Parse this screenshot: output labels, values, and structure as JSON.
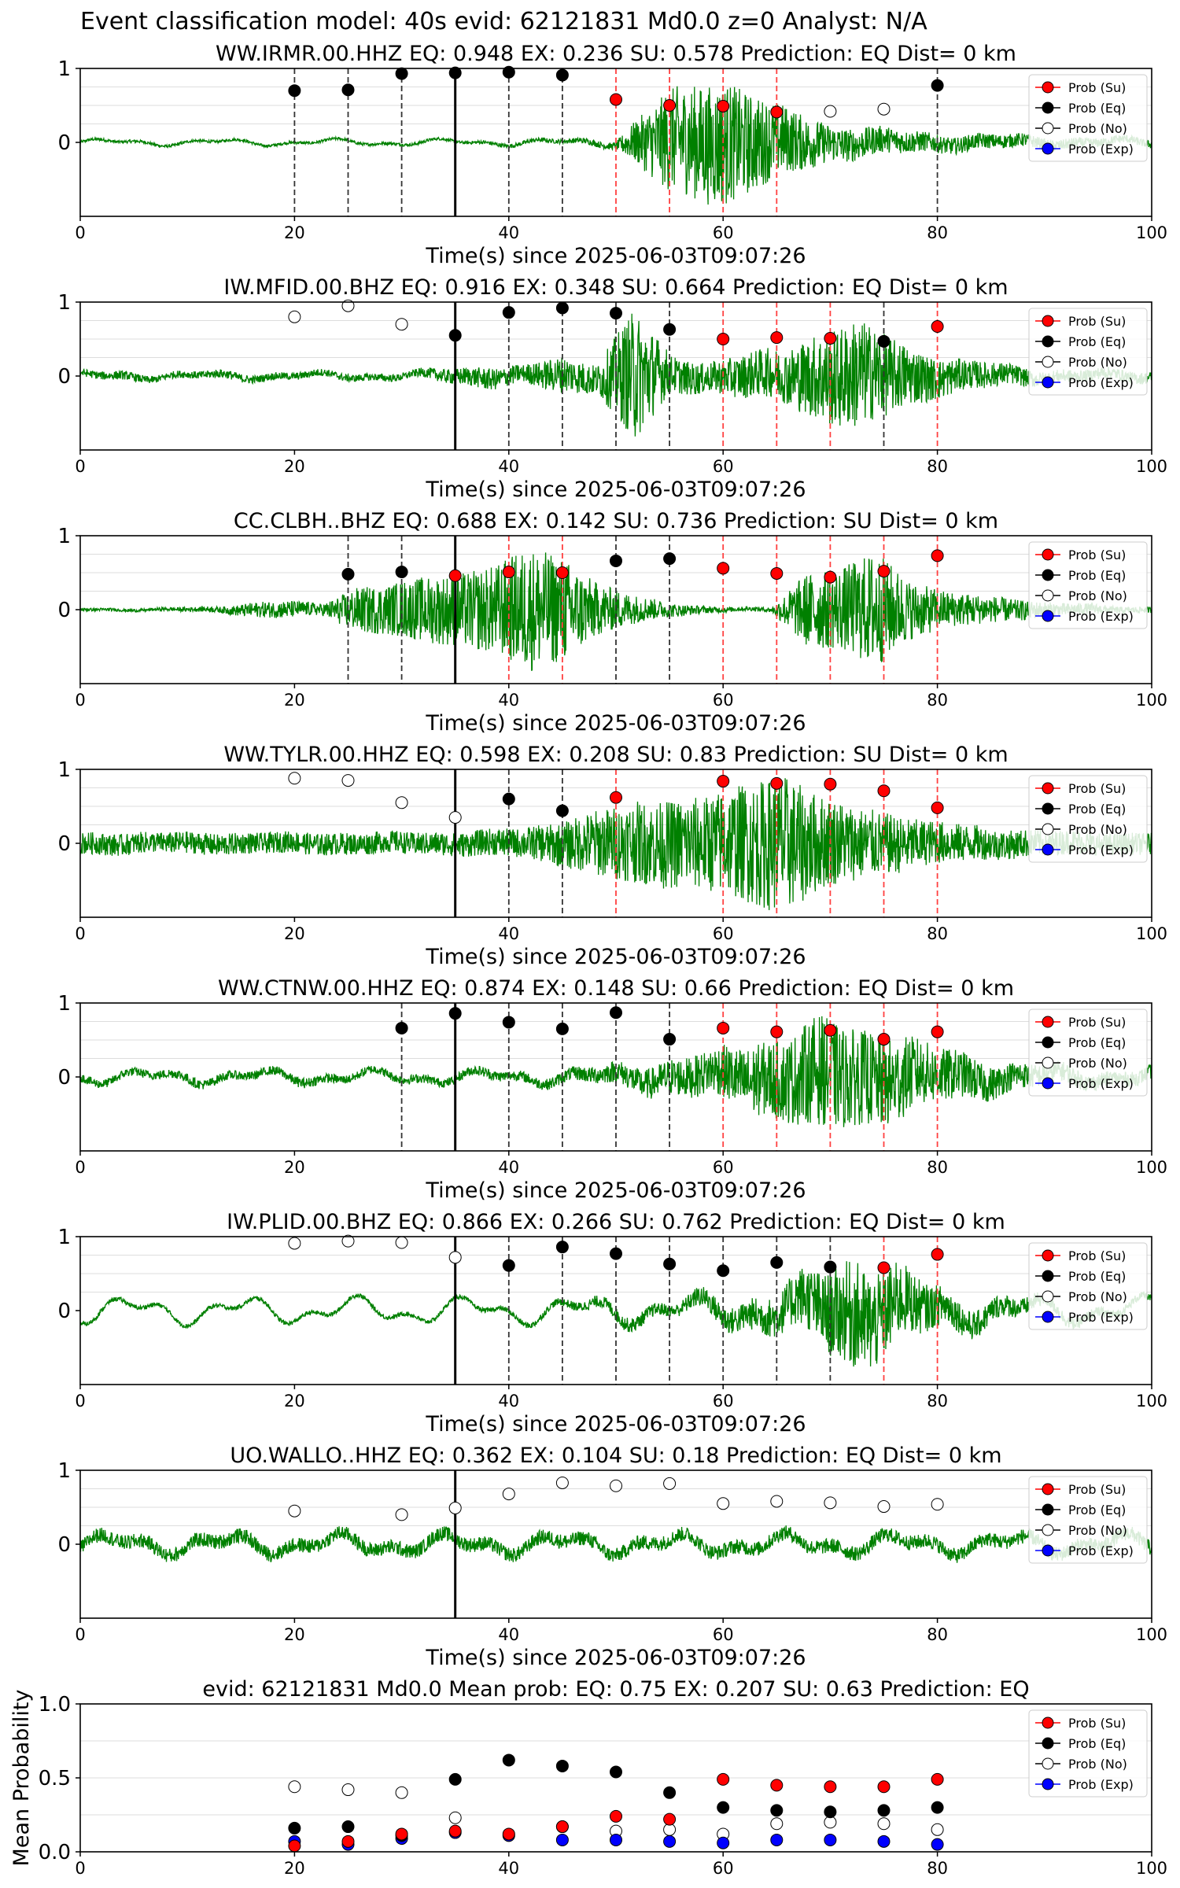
{
  "suptitle": "Event classification model: 40s evid: 62121831 Md0.0 z=0 Analyst: N/A",
  "colors": {
    "su": "#ff0000",
    "eq": "#000000",
    "no": "#ffffff",
    "exp": "#0000ff",
    "trace": "#008000",
    "grid": "#dddddd",
    "eq_line": "#333333",
    "su_line": "#ff4040",
    "pick_line": "#000000"
  },
  "legend_labels": [
    "Prob (Su)",
    "Prob (Eq)",
    "Prob (No)",
    "Prob (Exp)"
  ],
  "chart_data": [
    {
      "type": "scatter",
      "title": "WW.IRMR.00.HHZ   EQ: 0.948  EX: 0.236  SU: 0.578   Prediction: EQ    Dist= 0 km",
      "xlabel": "Time(s) since 2025-06-03T09:07:26",
      "xlim": [
        0,
        100
      ],
      "ylim": [
        -1,
        1
      ],
      "xticks": [
        "0",
        "20",
        "40",
        "60",
        "80",
        "100"
      ],
      "yticks": [
        "1",
        "0"
      ],
      "pick_time": 35,
      "amplitude": [
        0.02,
        0.02,
        0.02,
        0.02,
        0.02,
        0.02,
        0.02,
        0.02,
        0.03,
        0.03,
        0.05,
        0.7,
        0.85,
        0.5,
        0.25,
        0.18,
        0.12,
        0.1,
        0.08,
        0.06,
        0.05
      ],
      "trace_drift": 0.4,
      "vlines_eq": [
        20,
        25,
        30,
        40,
        45,
        80
      ],
      "vlines_su": [
        50,
        55,
        60,
        65
      ],
      "series": [
        {
          "name": "Prob (Eq)",
          "x": [
            20,
            25,
            30,
            35,
            40,
            45,
            80
          ],
          "y": [
            0.7,
            0.71,
            0.93,
            0.94,
            0.95,
            0.91,
            0.77
          ]
        },
        {
          "name": "Prob (Su)",
          "x": [
            50,
            55,
            60,
            65
          ],
          "y": [
            0.58,
            0.5,
            0.49,
            0.41
          ]
        },
        {
          "name": "Prob (No)",
          "x": [
            70,
            75
          ],
          "y": [
            0.42,
            0.45
          ]
        }
      ]
    },
    {
      "type": "scatter",
      "title": "IW.MFID.00.BHZ   EQ: 0.916  EX: 0.348  SU: 0.664   Prediction: EQ    Dist= 0 km",
      "xlabel": "Time(s) since 2025-06-03T09:07:26",
      "xlim": [
        0,
        100
      ],
      "ylim": [
        -1,
        1
      ],
      "xticks": [
        "0",
        "20",
        "40",
        "60",
        "80",
        "100"
      ],
      "yticks": [
        "1",
        "0"
      ],
      "pick_time": 35,
      "amplitude": [
        0.05,
        0.06,
        0.05,
        0.05,
        0.06,
        0.05,
        0.05,
        0.05,
        0.05,
        0.05,
        0.1,
        0.15,
        0.12,
        0.25,
        0.2,
        0.9,
        0.25,
        0.2,
        0.3,
        0.35,
        0.6,
        0.75,
        0.5,
        0.3,
        0.2,
        0.15,
        0.1,
        0.08,
        0.08,
        0.08
      ],
      "trace_drift": 0.4,
      "vlines_eq": [
        40,
        45,
        50,
        55,
        75
      ],
      "vlines_su": [
        60,
        65,
        70,
        80
      ],
      "series": [
        {
          "name": "Prob (No)",
          "x": [
            20,
            25,
            30
          ],
          "y": [
            0.8,
            0.95,
            0.7
          ]
        },
        {
          "name": "Prob (Eq)",
          "x": [
            35,
            40,
            45,
            50,
            55,
            75
          ],
          "y": [
            0.55,
            0.86,
            0.92,
            0.85,
            0.63,
            0.47
          ]
        },
        {
          "name": "Prob (Su)",
          "x": [
            60,
            65,
            70,
            80
          ],
          "y": [
            0.5,
            0.52,
            0.51,
            0.67
          ]
        }
      ]
    },
    {
      "type": "scatter",
      "title": "CC.CLBH..BHZ   EQ: 0.688  EX: 0.142  SU: 0.736   Prediction: SU    Dist= 0 km",
      "xlabel": "Time(s) since 2025-06-03T09:07:26",
      "xlim": [
        0,
        100
      ],
      "ylim": [
        -1,
        1
      ],
      "xticks": [
        "0",
        "20",
        "40",
        "60",
        "80",
        "100"
      ],
      "yticks": [
        "1",
        "0"
      ],
      "pick_time": 35,
      "amplitude": [
        0.02,
        0.02,
        0.02,
        0.03,
        0.04,
        0.1,
        0.12,
        0.08,
        0.3,
        0.35,
        0.45,
        0.5,
        0.6,
        0.85,
        0.7,
        0.35,
        0.2,
        0.1,
        0.05,
        0.03,
        0.03,
        0.5,
        0.55,
        0.8,
        0.4,
        0.25,
        0.2,
        0.15,
        0.1,
        0.08,
        0.05,
        0.04
      ],
      "trace_drift": 0.1,
      "vlines_eq": [
        25,
        30,
        50,
        55
      ],
      "vlines_su": [
        40,
        45,
        60,
        65,
        70,
        75,
        80
      ],
      "series": [
        {
          "name": "Prob (Eq)",
          "x": [
            25,
            30,
            50,
            55
          ],
          "y": [
            0.48,
            0.51,
            0.66,
            0.69
          ]
        },
        {
          "name": "Prob (Su)",
          "x": [
            35,
            40,
            45,
            60,
            65,
            70,
            75,
            80
          ],
          "y": [
            0.46,
            0.51,
            0.5,
            0.56,
            0.49,
            0.44,
            0.52,
            0.73
          ]
        }
      ]
    },
    {
      "type": "scatter",
      "title": "WW.TYLR.00.HHZ   EQ: 0.598  EX: 0.208  SU: 0.83   Prediction: SU    Dist= 0 km",
      "xlabel": "Time(s) since 2025-06-03T09:07:26",
      "xlim": [
        0,
        100
      ],
      "ylim": [
        -1,
        1
      ],
      "xticks": [
        "0",
        "20",
        "40",
        "60",
        "80",
        "100"
      ],
      "yticks": [
        "1",
        "0"
      ],
      "pick_time": 35,
      "amplitude": [
        0.15,
        0.15,
        0.14,
        0.15,
        0.15,
        0.14,
        0.15,
        0.15,
        0.15,
        0.15,
        0.16,
        0.18,
        0.2,
        0.3,
        0.45,
        0.55,
        0.6,
        0.65,
        0.8,
        0.95,
        0.65,
        0.5,
        0.4,
        0.3,
        0.25,
        0.2,
        0.18,
        0.16,
        0.15,
        0.15
      ],
      "trace_drift": 0.2,
      "vlines_eq": [
        40,
        45
      ],
      "vlines_su": [
        50,
        60,
        65,
        70,
        75,
        80
      ],
      "series": [
        {
          "name": "Prob (No)",
          "x": [
            20,
            25,
            30,
            35
          ],
          "y": [
            0.88,
            0.85,
            0.55,
            0.35
          ]
        },
        {
          "name": "Prob (Eq)",
          "x": [
            40,
            45
          ],
          "y": [
            0.6,
            0.44
          ]
        },
        {
          "name": "Prob (Su)",
          "x": [
            50,
            60,
            65,
            70,
            75,
            80
          ],
          "y": [
            0.62,
            0.84,
            0.81,
            0.8,
            0.71,
            0.48
          ]
        }
      ]
    },
    {
      "type": "scatter",
      "title": "WW.CTNW.00.HHZ   EQ: 0.874  EX: 0.148  SU: 0.66   Prediction: EQ    Dist= 0 km",
      "xlabel": "Time(s) since 2025-06-03T09:07:26",
      "xlim": [
        0,
        100
      ],
      "ylim": [
        -1,
        1
      ],
      "xticks": [
        "0",
        "20",
        "40",
        "60",
        "80",
        "100"
      ],
      "yticks": [
        "1",
        "0"
      ],
      "pick_time": 35,
      "amplitude": [
        0.06,
        0.06,
        0.06,
        0.07,
        0.06,
        0.06,
        0.07,
        0.06,
        0.06,
        0.06,
        0.06,
        0.07,
        0.07,
        0.08,
        0.12,
        0.18,
        0.25,
        0.3,
        0.45,
        0.55,
        0.75,
        0.65,
        0.6,
        0.4,
        0.3,
        0.2,
        0.15,
        0.12,
        0.1,
        0.1
      ],
      "trace_drift": 0.8,
      "vlines_eq": [
        30,
        40,
        45,
        50,
        55
      ],
      "vlines_su": [
        60,
        65,
        70,
        75,
        80
      ],
      "series": [
        {
          "name": "Prob (Eq)",
          "x": [
            30,
            35,
            40,
            45,
            50,
            55
          ],
          "y": [
            0.66,
            0.86,
            0.74,
            0.65,
            0.87,
            0.51
          ]
        },
        {
          "name": "Prob (Su)",
          "x": [
            60,
            65,
            70,
            75,
            80
          ],
          "y": [
            0.66,
            0.61,
            0.63,
            0.51,
            0.61
          ]
        }
      ]
    },
    {
      "type": "scatter",
      "title": "IW.PLID.00.BHZ   EQ: 0.866  EX: 0.266  SU: 0.762   Prediction: EQ    Dist= 0 km",
      "xlabel": "Time(s) since 2025-06-03T09:07:26",
      "xlim": [
        0,
        100
      ],
      "ylim": [
        -1,
        1
      ],
      "xticks": [
        "0",
        "20",
        "40",
        "60",
        "80",
        "100"
      ],
      "yticks": [
        "1",
        "0"
      ],
      "pick_time": 35,
      "amplitude": [
        0.03,
        0.03,
        0.03,
        0.03,
        0.03,
        0.03,
        0.03,
        0.03,
        0.03,
        0.03,
        0.03,
        0.03,
        0.04,
        0.05,
        0.08,
        0.1,
        0.08,
        0.15,
        0.2,
        0.3,
        0.5,
        0.75,
        0.55,
        0.3,
        0.2,
        0.15,
        0.1,
        0.08,
        0.06,
        0.05
      ],
      "trace_drift": 1.6,
      "vlines_eq": [
        40,
        45,
        50,
        55,
        60,
        65,
        70
      ],
      "vlines_su": [
        75,
        80
      ],
      "series": [
        {
          "name": "Prob (No)",
          "x": [
            20,
            25,
            30,
            35
          ],
          "y": [
            0.91,
            0.94,
            0.92,
            0.72
          ]
        },
        {
          "name": "Prob (Eq)",
          "x": [
            40,
            45,
            50,
            55,
            60,
            65,
            70
          ],
          "y": [
            0.61,
            0.86,
            0.77,
            0.63,
            0.54,
            0.65,
            0.59
          ]
        },
        {
          "name": "Prob (Su)",
          "x": [
            75,
            80
          ],
          "y": [
            0.58,
            0.76
          ]
        }
      ]
    },
    {
      "type": "scatter",
      "title": "UO.WALLO..HHZ   EQ: 0.362  EX: 0.104  SU: 0.18   Prediction: EQ    Dist= 0 km",
      "xlabel": "Time(s) since 2025-06-03T09:07:26",
      "xlim": [
        0,
        100
      ],
      "ylim": [
        -1,
        1
      ],
      "xticks": [
        "0",
        "20",
        "40",
        "60",
        "80",
        "100"
      ],
      "yticks": [
        "1",
        "0"
      ],
      "pick_time": 35,
      "amplitude": [
        0.1,
        0.1,
        0.1,
        0.1,
        0.1,
        0.1,
        0.1,
        0.1,
        0.1,
        0.1,
        0.1,
        0.1,
        0.1,
        0.1,
        0.1,
        0.1,
        0.1,
        0.1,
        0.1,
        0.1
      ],
      "trace_drift": 1.2,
      "vlines_eq": [],
      "vlines_su": [],
      "series": [
        {
          "name": "Prob (No)",
          "x": [
            20,
            30,
            35,
            40,
            45,
            50,
            55,
            60,
            65,
            70,
            75,
            80
          ],
          "y": [
            0.45,
            0.4,
            0.49,
            0.68,
            0.83,
            0.79,
            0.82,
            0.55,
            0.58,
            0.56,
            0.51,
            0.54
          ]
        }
      ]
    },
    {
      "type": "scatter",
      "title": "evid: 62121831  Md0.0   Mean prob:   EQ: 0.75  EX: 0.207  SU: 0.63   Prediction: EQ",
      "xlabel": "",
      "ylabel": "Mean Probability",
      "xlim": [
        0,
        100
      ],
      "ylim": [
        0,
        1
      ],
      "xticks": [
        "0",
        "20",
        "40",
        "60",
        "80",
        "100"
      ],
      "yticks": [
        "1.0",
        "0.5",
        "0.0"
      ],
      "pick_time": null,
      "amplitude": [],
      "vlines_eq": [],
      "vlines_su": [],
      "series": [
        {
          "name": "Prob (No)",
          "x": [
            20,
            25,
            30,
            35,
            45,
            50,
            55,
            60,
            65,
            70,
            75,
            80
          ],
          "y": [
            0.44,
            0.42,
            0.4,
            0.23,
            0.17,
            0.14,
            0.15,
            0.12,
            0.19,
            0.2,
            0.19,
            0.15
          ]
        },
        {
          "name": "Prob (Exp)",
          "x": [
            20,
            25,
            30,
            35,
            40,
            45,
            50,
            55,
            60,
            65,
            70,
            75,
            80
          ],
          "y": [
            0.07,
            0.05,
            0.09,
            0.13,
            0.11,
            0.08,
            0.08,
            0.07,
            0.06,
            0.08,
            0.08,
            0.07,
            0.05
          ]
        },
        {
          "name": "Prob (Eq)",
          "x": [
            20,
            25,
            30,
            35,
            40,
            45,
            50,
            55,
            60,
            65,
            70,
            75,
            80
          ],
          "y": [
            0.16,
            0.17,
            0.11,
            0.49,
            0.62,
            0.58,
            0.54,
            0.4,
            0.3,
            0.28,
            0.27,
            0.28,
            0.3
          ]
        },
        {
          "name": "Prob (Su)",
          "x": [
            20,
            25,
            30,
            35,
            40,
            45,
            50,
            55,
            60,
            65,
            70,
            75,
            80
          ],
          "y": [
            0.04,
            0.07,
            0.12,
            0.14,
            0.12,
            0.17,
            0.24,
            0.22,
            0.49,
            0.45,
            0.44,
            0.44,
            0.49
          ]
        }
      ]
    }
  ]
}
